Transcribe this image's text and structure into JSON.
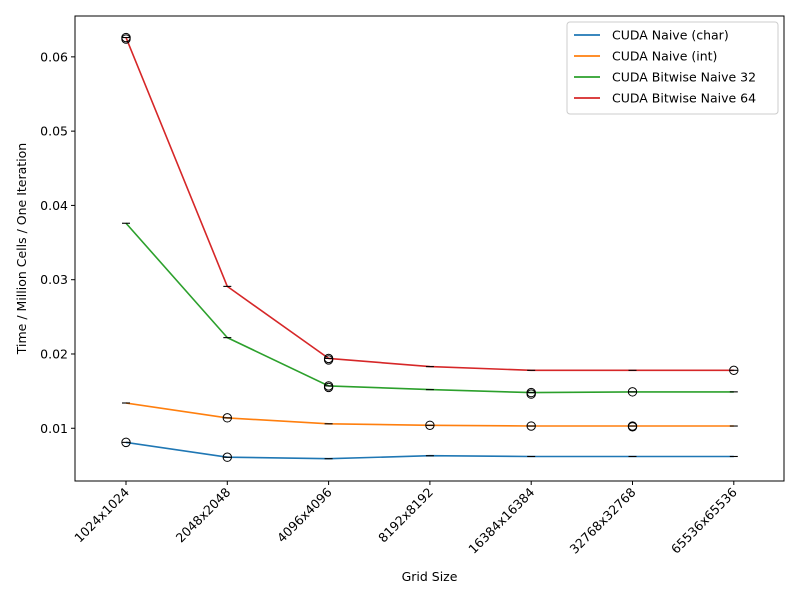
{
  "chart_data": {
    "type": "line",
    "title": "",
    "xlabel": "Grid Size",
    "ylabel": "Time / Million Cells / One Iteration",
    "categories": [
      "1024x1024",
      "2048x2048",
      "4096x4096",
      "8192x8192",
      "16384x16384",
      "32768x32768",
      "65536x65536"
    ],
    "ylim": [
      0.0029,
      0.0655
    ],
    "yticks": [
      0.01,
      0.02,
      0.03,
      0.04,
      0.05,
      0.06
    ],
    "ytick_labels": [
      "0.01",
      "0.02",
      "0.03",
      "0.04",
      "0.05",
      "0.06"
    ],
    "grid": false,
    "legend_position": "top-right",
    "series": [
      {
        "name": "CUDA Naive (char)",
        "color": "#1f77b4",
        "values": [
          0.0081,
          0.0061,
          0.0059,
          0.0063,
          0.0062,
          0.0062,
          0.0062
        ],
        "outlier_markers": [
          [
            0,
            0.0081
          ],
          [
            1,
            0.0061
          ]
        ]
      },
      {
        "name": "CUDA Naive (int)",
        "color": "#ff7f0e",
        "values": [
          0.0134,
          0.0114,
          0.0106,
          0.0104,
          0.0103,
          0.0103,
          0.0103
        ],
        "outlier_markers": [
          [
            1,
            0.0114
          ],
          [
            3,
            0.0104
          ],
          [
            4,
            0.0103
          ],
          [
            5,
            0.0103
          ],
          [
            5,
            0.0102
          ]
        ]
      },
      {
        "name": "CUDA Bitwise Naive 32",
        "color": "#2ca02c",
        "values": [
          0.0376,
          0.0222,
          0.0157,
          0.0152,
          0.0148,
          0.0149,
          0.0149
        ],
        "outlier_markers": [
          [
            2,
            0.0157
          ],
          [
            2,
            0.0155
          ],
          [
            4,
            0.0148
          ],
          [
            4,
            0.0146
          ],
          [
            5,
            0.0149
          ]
        ]
      },
      {
        "name": "CUDA Bitwise Naive 64",
        "color": "#d62728",
        "values": [
          0.0626,
          0.0291,
          0.0194,
          0.0183,
          0.0178,
          0.0178,
          0.0178
        ],
        "outlier_markers": [
          [
            0,
            0.0626
          ],
          [
            0,
            0.0624
          ],
          [
            2,
            0.0194
          ],
          [
            2,
            0.0192
          ],
          [
            6,
            0.0178
          ]
        ]
      }
    ]
  }
}
